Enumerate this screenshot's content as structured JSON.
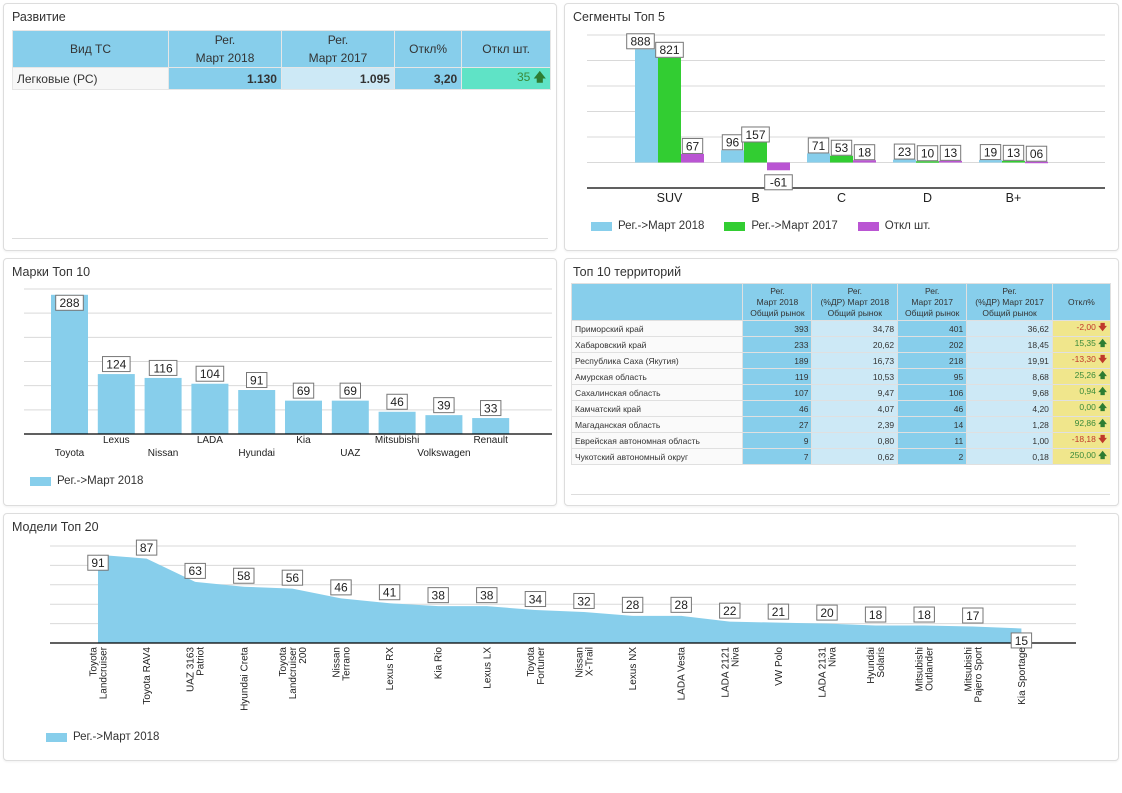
{
  "development": {
    "title": "Развитие",
    "headers": [
      "Вид ТС",
      "Рег.\nМарт 2018",
      "Рег.\nМарт 2017",
      "Откл%",
      "Откл шт."
    ],
    "rows": [
      {
        "type": "Легковые (РС)",
        "reg2018": "1.130",
        "reg2017": "1.095",
        "pct": "3,20",
        "diff": "35",
        "trend": "up"
      }
    ]
  },
  "segments": {
    "title": "Сегменты Топ 5"
  },
  "brands": {
    "title": "Марки Топ 10"
  },
  "territories": {
    "title": "Топ 10 территорий",
    "headers": [
      "",
      "Рег.\nМарт 2018\nОбщий рынок",
      "Рег.\n(%ДР) Март 2018\nОбщий рынок",
      "Рег.\nМарт 2017\nОбщий рынок",
      "Рег.\n(%ДР) Март 2017\nОбщий рынок",
      "Откл%"
    ],
    "rows": [
      {
        "name": "Приморский край",
        "r18": "393",
        "p18": "34,78",
        "r17": "401",
        "p17": "36,62",
        "diff": "-2,00",
        "trend": "down"
      },
      {
        "name": "Хабаровский край",
        "r18": "233",
        "p18": "20,62",
        "r17": "202",
        "p17": "18,45",
        "diff": "15,35",
        "trend": "up"
      },
      {
        "name": "Республика Саха (Якутия)",
        "r18": "189",
        "p18": "16,73",
        "r17": "218",
        "p17": "19,91",
        "diff": "-13,30",
        "trend": "down"
      },
      {
        "name": "Амурская область",
        "r18": "119",
        "p18": "10,53",
        "r17": "95",
        "p17": "8,68",
        "diff": "25,26",
        "trend": "up"
      },
      {
        "name": "Сахалинская область",
        "r18": "107",
        "p18": "9,47",
        "r17": "106",
        "p17": "9,68",
        "diff": "0,94",
        "trend": "up"
      },
      {
        "name": "Камчатский край",
        "r18": "46",
        "p18": "4,07",
        "r17": "46",
        "p17": "4,20",
        "diff": "0,00",
        "trend": "up"
      },
      {
        "name": "Магаданская область",
        "r18": "27",
        "p18": "2,39",
        "r17": "14",
        "p17": "1,28",
        "diff": "92,86",
        "trend": "up"
      },
      {
        "name": "Еврейская автономная область",
        "r18": "9",
        "p18": "0,80",
        "r17": "11",
        "p17": "1,00",
        "diff": "-18,18",
        "trend": "down"
      },
      {
        "name": "Чукотский автономный округ",
        "r18": "7",
        "p18": "0,62",
        "r17": "2",
        "p17": "0,18",
        "diff": "250,00",
        "trend": "up"
      }
    ]
  },
  "models": {
    "title": "Модели Топ 20"
  },
  "colors": {
    "reg2018": "#87ceeb",
    "reg2017": "#32cd32",
    "diff": "#ba55d3",
    "light": "#cde9f6",
    "yellow": "#f0e68c",
    "green_cell": "#5fe3c6"
  },
  "chart_data": [
    {
      "type": "bar",
      "title": "Сегменты Топ 5",
      "categories": [
        "SUV",
        "B",
        "C",
        "D",
        "B+"
      ],
      "series": [
        {
          "name": "Рег.->Март 2018",
          "values": [
            888,
            96,
            71,
            23,
            19
          ],
          "labels": [
            "888",
            "96",
            "71",
            "23",
            "19"
          ]
        },
        {
          "name": "Рег.->Март 2017",
          "values": [
            821,
            157,
            53,
            10,
            13
          ],
          "labels": [
            "821",
            "157",
            "53",
            "10",
            "13"
          ]
        },
        {
          "name": "Откл шт.",
          "values": [
            67,
            -61,
            18,
            13,
            6
          ],
          "labels": [
            "67",
            "-61",
            "18",
            "13",
            "06"
          ]
        }
      ],
      "ylim": [
        -200,
        1000
      ],
      "grid": true,
      "legend": "bottom-left"
    },
    {
      "type": "bar",
      "title": "Марки Топ 10",
      "categories": [
        "Toyota",
        "Lexus",
        "Nissan",
        "LADA",
        "Hyundai",
        "Kia",
        "UAZ",
        "Mitsubishi",
        "Volkswagen",
        "Renault"
      ],
      "series": [
        {
          "name": "Рег.->Март 2018",
          "values": [
            288,
            124,
            116,
            104,
            91,
            69,
            69,
            46,
            39,
            33
          ]
        }
      ],
      "ylim": [
        0,
        300
      ],
      "grid": true,
      "legend": "bottom-left"
    },
    {
      "type": "area",
      "title": "Модели Топ 20",
      "categories": [
        "Toyota\nLandcruiser",
        "Toyota RAV4",
        "UAZ 3163\nPatriot",
        "Hyundai Creta",
        "Toyota\nLandcruiser\n200",
        "Nissan\nTerrano",
        "Lexus RX",
        "Kia Rio",
        "Lexus LX",
        "Toyota\nFortuner",
        "Nissan\nX-Trail",
        "Lexus NX",
        "LADA Vesta",
        "LADA 2121\nNiva",
        "VW Polo",
        "LADA 2131\nNiva",
        "Hyundai\nSolaris",
        "Mitsubishi\nOutlander",
        "Mitsubishi\nPajero Sport",
        "Kia Sportage"
      ],
      "series": [
        {
          "name": "Рег.->Март 2018",
          "values": [
            91,
            87,
            63,
            58,
            56,
            46,
            41,
            38,
            38,
            34,
            32,
            28,
            28,
            22,
            21,
            20,
            18,
            18,
            17,
            15
          ]
        }
      ],
      "ylim": [
        0,
        100
      ],
      "grid": true,
      "legend": "bottom-left"
    }
  ]
}
